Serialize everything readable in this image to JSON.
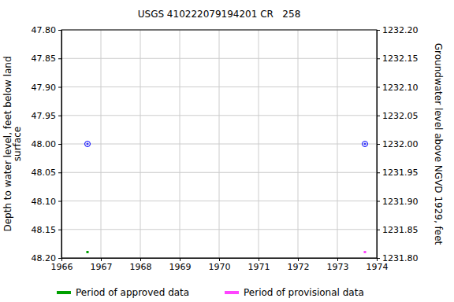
{
  "chart_data": {
    "type": "scatter",
    "title": "USGS 410222079194201 CR   258",
    "y_label": [
      "Depth to water level, feet below land",
      "surface"
    ],
    "y2_label": "Groundwater level above NGVD 1929, feet",
    "x": [
      1966.66,
      1973.7
    ],
    "values": [
      48.0,
      48.0
    ],
    "color": "#0000ff",
    "marker": "circle-open",
    "grid": true,
    "xlim": [
      1966,
      1974
    ],
    "xticks": [
      1966,
      1967,
      1968,
      1969,
      1970,
      1971,
      1972,
      1973,
      1974
    ],
    "ylim": [
      48.2,
      47.8
    ],
    "yticks": [
      {
        "value": 47.8,
        "label": "47.80"
      },
      {
        "value": 47.85,
        "label": "47.85"
      },
      {
        "value": 47.9,
        "label": "47.90"
      },
      {
        "value": 47.95,
        "label": "47.95"
      },
      {
        "value": 48.0,
        "label": "48.00"
      },
      {
        "value": 48.05,
        "label": "48.05"
      },
      {
        "value": 48.1,
        "label": "48.10"
      },
      {
        "value": 48.15,
        "label": "48.15"
      },
      {
        "value": 48.2,
        "label": "48.20"
      }
    ],
    "y2lim": [
      1231.8,
      1232.2
    ],
    "y2ticks": [
      {
        "value": 1232.2,
        "label": "1232.20"
      },
      {
        "value": 1232.15,
        "label": "1232.15"
      },
      {
        "value": 1232.1,
        "label": "1232.10"
      },
      {
        "value": 1232.05,
        "label": "1232.05"
      },
      {
        "value": 1232.0,
        "label": "1232.00"
      },
      {
        "value": 1231.95,
        "label": "1231.95"
      },
      {
        "value": 1231.9,
        "label": "1231.90"
      },
      {
        "value": 1231.85,
        "label": "1231.85"
      },
      {
        "value": 1231.8,
        "label": "1231.80"
      }
    ],
    "periods": [
      {
        "name": "Period of approved data",
        "color": "#00a000",
        "x": [
          1966.66
        ]
      },
      {
        "name": "Period of provisional data",
        "color": "#ff44ff",
        "x": [
          1973.7
        ]
      }
    ]
  }
}
